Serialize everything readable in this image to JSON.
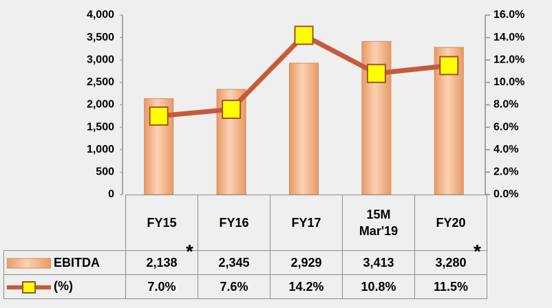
{
  "chart_data": {
    "type": "bar_line",
    "categories": [
      "FY15",
      "FY16",
      "FY17",
      "15M Mar'19",
      "FY20"
    ],
    "series": [
      {
        "name": "EBITDA",
        "type": "bar",
        "color": "#f2b98f",
        "values": [
          2138,
          2345,
          2929,
          3413,
          3280
        ],
        "value_labels": [
          "2,138",
          "2,345",
          "2,929",
          "3,413",
          "3,280"
        ]
      },
      {
        "name": "(%)",
        "type": "line",
        "axis": "y2",
        "color": "#c55a3c",
        "marker_color": "#ffff00",
        "values": [
          7.0,
          7.6,
          14.2,
          10.8,
          11.5
        ],
        "value_labels": [
          "7.0%",
          "7.6%",
          "14.2%",
          "10.8%",
          "11.5%"
        ]
      }
    ],
    "annotations": [
      "*",
      "*"
    ],
    "ylim": [
      0,
      4000
    ],
    "yticks": [
      0,
      500,
      {
        "value": 1000,
        "label": "1,000"
      },
      {
        "value": 1500,
        "label": "1,500"
      },
      {
        "value": 2000,
        "label": "2,000"
      },
      {
        "value": 2500,
        "label": "2,500"
      },
      {
        "value": 3000,
        "label": "3,000"
      },
      {
        "value": 3500,
        "label": "3,500"
      },
      {
        "value": 4000,
        "label": "4,000"
      }
    ],
    "y2lim": [
      0,
      16
    ],
    "y2ticks": [
      {
        "value": 0,
        "label": "0.0%"
      },
      {
        "value": 2,
        "label": "2.0%"
      },
      {
        "value": 4,
        "label": "4.0%"
      },
      {
        "value": 6,
        "label": "6.0%"
      },
      {
        "value": 8,
        "label": "8.0%"
      },
      {
        "value": 10,
        "label": "10.0%"
      },
      {
        "value": 12,
        "label": "12.0%"
      },
      {
        "value": 14,
        "label": "14.0%"
      },
      {
        "value": 16,
        "label": "16.0%"
      }
    ],
    "grid": false
  }
}
